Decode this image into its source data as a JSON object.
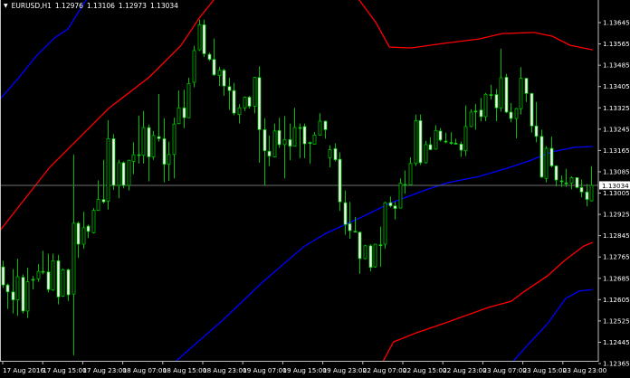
{
  "header": {
    "symbol": "EURUSD,H1",
    "open": "1.12976",
    "high": "1.13106",
    "low": "1.12973",
    "close": "1.13034",
    "menu_icon": "triangle-down-icon"
  },
  "colors": {
    "background": "#000000",
    "candle_outline": "#00c000",
    "bear_body": "#ffffff",
    "bull_body": "#000000",
    "band_inner": "#ff0000",
    "band_outer": "#0000ff",
    "axis": "#c0c0c0",
    "price_line": "#707070"
  },
  "chart_data": {
    "type": "candlestick",
    "symbol": "EURUSD",
    "timeframe": "H1",
    "current_price": "1.13034",
    "ylim": [
      1.12365,
      1.13696
    ],
    "y_ticks": [
      "1.13645",
      "1.13565",
      "1.13485",
      "1.13405",
      "1.13325",
      "1.13245",
      "1.13165",
      "1.13085",
      "1.13005",
      "1.12925",
      "1.12845",
      "1.12765",
      "1.12685",
      "1.12605",
      "1.12525",
      "1.12445",
      "1.12365"
    ],
    "x_ticks": [
      "17 Aug 2016",
      "17 Aug 15:00",
      "17 Aug 23:00",
      "18 Aug 07:00",
      "18 Aug 15:00",
      "18 Aug 23:00",
      "19 Aug 07:00",
      "19 Aug 15:00",
      "19 Aug 23:00",
      "22 Aug 07:00",
      "22 Aug 15:00",
      "22 Aug 23:00",
      "23 Aug 07:00",
      "23 Aug 15:00",
      "23 Aug 23:00"
    ],
    "ohlc": [
      [
        1.12728,
        1.12751,
        1.12649,
        1.1266
      ],
      [
        1.1266,
        1.12666,
        1.1257,
        1.12634
      ],
      [
        1.12634,
        1.1272,
        1.12553,
        1.12604
      ],
      [
        1.12604,
        1.12759,
        1.12544,
        1.12691
      ],
      [
        1.12689,
        1.127,
        1.12553,
        1.12562
      ],
      [
        1.12562,
        1.12725,
        1.12536,
        1.12672
      ],
      [
        1.12681,
        1.12694,
        1.12643,
        1.1268
      ],
      [
        1.12683,
        1.12739,
        1.12672,
        1.12711
      ],
      [
        1.12711,
        1.12788,
        1.127,
        1.1271
      ],
      [
        1.12709,
        1.12777,
        1.12632,
        1.12643
      ],
      [
        1.12641,
        1.12777,
        1.12638,
        1.12751
      ],
      [
        1.12751,
        1.12773,
        1.12587,
        1.12615
      ],
      [
        1.12618,
        1.12722,
        1.12615,
        1.12717
      ],
      [
        1.12717,
        1.12722,
        1.126,
        1.12623
      ],
      [
        1.12626,
        1.13149,
        1.12396,
        1.12892
      ],
      [
        1.12892,
        1.12898,
        1.12762,
        1.12813
      ],
      [
        1.12813,
        1.12935,
        1.12796,
        1.12875
      ],
      [
        1.12881,
        1.12887,
        1.12836,
        1.12861
      ],
      [
        1.12856,
        1.12949,
        1.12853,
        1.1294
      ],
      [
        1.1294,
        1.13053,
        1.12938,
        1.12981
      ],
      [
        1.12981,
        1.1313,
        1.12966,
        1.12972
      ],
      [
        1.12975,
        1.13279,
        1.12943,
        1.13209
      ],
      [
        1.13209,
        1.13226,
        1.13017,
        1.13034
      ],
      [
        1.13034,
        1.1313,
        1.12985,
        1.13119
      ],
      [
        1.13119,
        1.13124,
        1.13023,
        1.13034
      ],
      [
        1.13034,
        1.1313,
        1.13015,
        1.13128
      ],
      [
        1.13124,
        1.13196,
        1.13076,
        1.13149
      ],
      [
        1.13149,
        1.13296,
        1.13116,
        1.13148
      ],
      [
        1.13147,
        1.13313,
        1.13116,
        1.13251
      ],
      [
        1.13251,
        1.13262,
        1.13049,
        1.13141
      ],
      [
        1.13141,
        1.13238,
        1.1313,
        1.13221
      ],
      [
        1.13217,
        1.13377,
        1.13198,
        1.13209
      ],
      [
        1.13209,
        1.13286,
        1.13045,
        1.13113
      ],
      [
        1.13113,
        1.13198,
        1.13051,
        1.1315
      ],
      [
        1.1315,
        1.13288,
        1.1306,
        1.13264
      ],
      [
        1.13266,
        1.1339,
        1.13264,
        1.13325
      ],
      [
        1.13325,
        1.13393,
        1.13249,
        1.13288
      ],
      [
        1.13288,
        1.13438,
        1.13286,
        1.13416
      ],
      [
        1.13421,
        1.13558,
        1.13402,
        1.1354
      ],
      [
        1.13543,
        1.13656,
        1.13538,
        1.13637
      ],
      [
        1.13637,
        1.13656,
        1.13515,
        1.13528
      ],
      [
        1.13526,
        1.13532,
        1.13501,
        1.13507
      ],
      [
        1.13507,
        1.13585,
        1.13445,
        1.13449
      ],
      [
        1.13447,
        1.13479,
        1.13407,
        1.13466
      ],
      [
        1.13466,
        1.13472,
        1.1337,
        1.13407
      ],
      [
        1.13405,
        1.13438,
        1.13317,
        1.1339
      ],
      [
        1.1339,
        1.13419,
        1.13297,
        1.13305
      ],
      [
        1.133,
        1.13339,
        1.13266,
        1.13325
      ],
      [
        1.13325,
        1.13368,
        1.13313,
        1.13365
      ],
      [
        1.13365,
        1.1337,
        1.13322,
        1.13331
      ],
      [
        1.13331,
        1.13441,
        1.13305,
        1.13439
      ],
      [
        1.13439,
        1.13481,
        1.13119,
        1.13243
      ],
      [
        1.13243,
        1.13286,
        1.13034,
        1.13164
      ],
      [
        1.13162,
        1.13221,
        1.13107,
        1.13144
      ],
      [
        1.13141,
        1.13266,
        1.13139,
        1.13238
      ],
      [
        1.1324,
        1.13288,
        1.13175,
        1.13187
      ],
      [
        1.13187,
        1.13294,
        1.1306,
        1.13206
      ],
      [
        1.13206,
        1.13266,
        1.13128,
        1.13181
      ],
      [
        1.13181,
        1.13325,
        1.13181,
        1.13251
      ],
      [
        1.13251,
        1.13266,
        1.13136,
        1.1325
      ],
      [
        1.13255,
        1.13266,
        1.13136,
        1.1319
      ],
      [
        1.13195,
        1.13198,
        1.13116,
        1.13193
      ],
      [
        1.13189,
        1.13234,
        1.13187,
        1.13223
      ],
      [
        1.13223,
        1.13305,
        1.13221,
        1.13275
      ],
      [
        1.13275,
        1.13277,
        1.13209,
        1.13243
      ],
      [
        1.13138,
        1.13184,
        1.13102,
        1.13168
      ],
      [
        1.13172,
        1.13192,
        1.13124,
        1.1313
      ],
      [
        1.13132,
        1.13158,
        1.12938,
        1.12972
      ],
      [
        1.12969,
        1.13015,
        1.12849,
        1.12887
      ],
      [
        1.1289,
        1.12972,
        1.12833,
        1.12864
      ],
      [
        1.12862,
        1.12915,
        1.12858,
        1.12861
      ],
      [
        1.12858,
        1.12861,
        1.12702,
        1.12759
      ],
      [
        1.12759,
        1.12811,
        1.12756,
        1.12807
      ],
      [
        1.12807,
        1.12813,
        1.12711,
        1.12726
      ],
      [
        1.12728,
        1.12815,
        1.12725,
        1.12813
      ],
      [
        1.12811,
        1.12879,
        1.12728,
        1.1281
      ],
      [
        1.12813,
        1.12972,
        1.12796,
        1.12969
      ],
      [
        1.12969,
        1.12992,
        1.12951,
        1.12957
      ],
      [
        1.12957,
        1.12972,
        1.12906,
        1.12947
      ],
      [
        1.12949,
        1.1306,
        1.12947,
        1.13042
      ],
      [
        1.13037,
        1.1309,
        1.13003,
        1.13036
      ],
      [
        1.13036,
        1.13139,
        1.13034,
        1.13116
      ],
      [
        1.13116,
        1.133,
        1.13107,
        1.13277
      ],
      [
        1.13277,
        1.133,
        1.1311,
        1.13119
      ],
      [
        1.13119,
        1.13201,
        1.13116,
        1.13187
      ],
      [
        1.13187,
        1.13215,
        1.13166,
        1.13168
      ],
      [
        1.1317,
        1.1326,
        1.13168,
        1.1324
      ],
      [
        1.13238,
        1.13249,
        1.13198,
        1.13204
      ],
      [
        1.132,
        1.13232,
        1.13192,
        1.13199
      ],
      [
        1.13195,
        1.13234,
        1.13187,
        1.13193
      ],
      [
        1.13192,
        1.13209,
        1.13187,
        1.13191
      ],
      [
        1.13189,
        1.13198,
        1.13141,
        1.13166
      ],
      [
        1.13164,
        1.13334,
        1.13144,
        1.13255
      ],
      [
        1.13255,
        1.1332,
        1.13252,
        1.13309
      ],
      [
        1.13313,
        1.13339,
        1.13243,
        1.13312
      ],
      [
        1.13317,
        1.13362,
        1.13275,
        1.13292
      ],
      [
        1.13292,
        1.13381,
        1.13275,
        1.13376
      ],
      [
        1.13375,
        1.13411,
        1.13356,
        1.13373
      ],
      [
        1.13375,
        1.13396,
        1.13275,
        1.13325
      ],
      [
        1.13325,
        1.13547,
        1.13311,
        1.13438
      ],
      [
        1.1344,
        1.13453,
        1.13305,
        1.13309
      ],
      [
        1.13309,
        1.13343,
        1.13271,
        1.13285
      ],
      [
        1.13285,
        1.13325,
        1.13211,
        1.13322
      ],
      [
        1.13322,
        1.13478,
        1.133,
        1.13436
      ],
      [
        1.13436,
        1.13438,
        1.13347,
        1.13379
      ],
      [
        1.13379,
        1.13381,
        1.13232,
        1.13257
      ],
      [
        1.13257,
        1.13347,
        1.13196,
        1.13218
      ],
      [
        1.13218,
        1.13243,
        1.13062,
        1.13065
      ],
      [
        1.1306,
        1.13181,
        1.13045,
        1.13173
      ],
      [
        1.13173,
        1.13217,
        1.13102,
        1.13107
      ],
      [
        1.13107,
        1.1311,
        1.1303,
        1.13054
      ],
      [
        1.13051,
        1.13071,
        1.13028,
        1.1305
      ],
      [
        1.13043,
        1.13096,
        1.13028,
        1.13042
      ],
      [
        1.13043,
        1.13068,
        1.13019,
        1.13063
      ],
      [
        1.13063,
        1.13064,
        1.13022,
        1.13026
      ],
      [
        1.13026,
        1.13056,
        1.12989,
        1.13009
      ],
      [
        1.13009,
        1.13039,
        1.12955,
        1.12981
      ],
      [
        1.12976,
        1.13106,
        1.12973,
        1.13034
      ]
    ],
    "bands": [
      {
        "color": "#ff0000",
        "points": [
          [
            -0.5,
            1.12864
          ],
          [
            9.4,
            1.13102
          ],
          [
            21.1,
            1.13323
          ],
          [
            29.2,
            1.13441
          ],
          [
            35.5,
            1.1356
          ],
          [
            39.1,
            1.13662
          ],
          [
            42.7,
            1.13747
          ],
          [
            55,
            1.1385
          ],
          [
            65,
            1.1382
          ]
        ]
      },
      {
        "color": "#ff0000",
        "points": [
          [
            65,
            1.1382
          ],
          [
            70.9,
            1.1373
          ],
          [
            74.2,
            1.13645
          ],
          [
            76.9,
            1.13553
          ],
          [
            81.3,
            1.1355
          ],
          [
            87.6,
            1.13567
          ],
          [
            94.8,
            1.13584
          ],
          [
            99.3,
            1.13604
          ],
          [
            105.6,
            1.13608
          ],
          [
            109.2,
            1.13594
          ],
          [
            112.8,
            1.1356
          ],
          [
            117.3,
            1.13543
          ]
        ]
      },
      {
        "color": "#ff0000",
        "points": [
          [
            74.7,
            1.12338
          ],
          [
            75.6,
            1.12372
          ],
          [
            77.7,
            1.12446
          ],
          [
            82.2,
            1.1248
          ],
          [
            88.5,
            1.12521
          ],
          [
            96.6,
            1.12576
          ],
          [
            101.1,
            1.12599
          ],
          [
            103.8,
            1.12637
          ],
          [
            108.3,
            1.12694
          ],
          [
            111.9,
            1.12755
          ],
          [
            115.5,
            1.12806
          ],
          [
            117.3,
            1.1282
          ]
        ]
      },
      {
        "color": "#0000ff",
        "points": [
          [
            -0.5,
            1.13357
          ],
          [
            3.1,
            1.13435
          ],
          [
            6.7,
            1.13519
          ],
          [
            10.3,
            1.13587
          ],
          [
            13.0,
            1.13621
          ],
          [
            16.6,
            1.1373
          ],
          [
            17.5,
            1.13757
          ]
        ]
      },
      {
        "color": "#0000ff",
        "points": [
          [
            32.8,
            1.12345
          ],
          [
            36.4,
            1.12406
          ],
          [
            43.6,
            1.12525
          ],
          [
            51.7,
            1.12671
          ],
          [
            59.8,
            1.12803
          ],
          [
            64.3,
            1.12854
          ],
          [
            71.4,
            1.12915
          ],
          [
            76.9,
            1.12966
          ],
          [
            84.1,
            1.13017
          ],
          [
            88.5,
            1.13044
          ],
          [
            94.8,
            1.13068
          ],
          [
            100.2,
            1.13098
          ],
          [
            104.7,
            1.13126
          ],
          [
            109.2,
            1.1316
          ],
          [
            113.7,
            1.13177
          ],
          [
            117.3,
            1.1318
          ]
        ]
      },
      {
        "color": "#0000ff",
        "points": [
          [
            100.2,
            1.12345
          ],
          [
            103.8,
            1.12423
          ],
          [
            108.3,
            1.12514
          ],
          [
            111.9,
            1.12609
          ],
          [
            114.6,
            1.12637
          ],
          [
            117.3,
            1.12643
          ]
        ]
      }
    ]
  }
}
